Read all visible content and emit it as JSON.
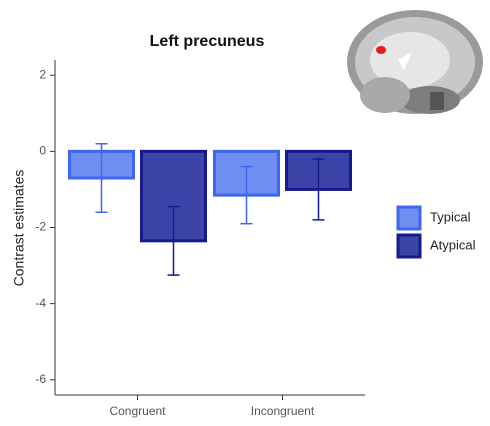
{
  "chart_data": {
    "type": "bar",
    "title": "Left precuneus",
    "y_label": "Contrast estimates",
    "categories": [
      "Congruent",
      "Incongruent"
    ],
    "series": [
      {
        "name": "Typical",
        "color": "#6f8ff2",
        "edge": "#3f66ee",
        "values": [
          -0.7,
          -1.15
        ],
        "errors": [
          0.9,
          0.75
        ]
      },
      {
        "name": "Atypical",
        "color": "#3d44a8",
        "edge": "#161a8c",
        "values": [
          -2.35,
          -1.0
        ],
        "errors": [
          0.9,
          0.8
        ]
      }
    ],
    "ylim": [
      -6.4,
      2.4
    ],
    "yticks": [
      2,
      0,
      -2,
      -4,
      -6
    ],
    "grid": false
  }
}
